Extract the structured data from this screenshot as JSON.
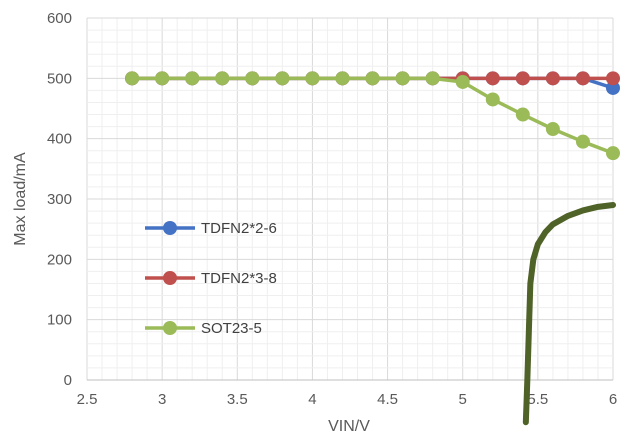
{
  "chart_data": {
    "type": "line",
    "xlabel": "VIN/V",
    "ylabel": "Max load/mA",
    "xlim": [
      2.5,
      6
    ],
    "ylim": [
      0,
      600
    ],
    "xticks": [
      "2.5",
      "3",
      "3.5",
      "4",
      "4.5",
      "5",
      "5.5",
      "6"
    ],
    "yticks": [
      "0",
      "100",
      "200",
      "300",
      "400",
      "500",
      "600"
    ],
    "grid": true,
    "legend_position": "left-center",
    "series": [
      {
        "name": "TDFN2*2-6",
        "color": "#4472C4",
        "x": [
          2.8,
          3.0,
          3.2,
          3.4,
          3.6,
          3.8,
          4.0,
          4.2,
          4.4,
          4.6,
          4.8,
          5.0,
          5.2,
          5.4,
          5.6,
          5.8,
          6.0
        ],
        "y": [
          500,
          500,
          500,
          500,
          500,
          500,
          500,
          500,
          500,
          500,
          500,
          500,
          500,
          500,
          500,
          500,
          484
        ]
      },
      {
        "name": "TDFN2*3-8",
        "color": "#C0504D",
        "x": [
          2.8,
          3.0,
          3.2,
          3.4,
          3.6,
          3.8,
          4.0,
          4.2,
          4.4,
          4.6,
          4.8,
          5.0,
          5.2,
          5.4,
          5.6,
          5.8,
          6.0
        ],
        "y": [
          500,
          500,
          500,
          500,
          500,
          500,
          500,
          500,
          500,
          500,
          500,
          500,
          500,
          500,
          500,
          500,
          500
        ]
      },
      {
        "name": "SOT23-5",
        "color": "#9BBB59",
        "x": [
          2.8,
          3.0,
          3.2,
          3.4,
          3.6,
          3.8,
          4.0,
          4.2,
          4.4,
          4.6,
          4.8,
          5.0,
          5.2,
          5.4,
          5.6,
          5.8,
          6.0
        ],
        "y": [
          500,
          500,
          500,
          500,
          500,
          500,
          500,
          500,
          500,
          500,
          500,
          494,
          465,
          440,
          416,
          395,
          376
        ]
      }
    ],
    "overlay_curve": {
      "color": "#4F6228",
      "x": [
        5.42,
        5.43,
        5.44,
        5.45,
        5.47,
        5.5,
        5.55,
        5.6,
        5.7,
        5.8,
        5.9,
        6.0
      ],
      "y": [
        -70,
        0,
        80,
        160,
        200,
        225,
        245,
        258,
        272,
        281,
        287,
        290
      ]
    }
  }
}
